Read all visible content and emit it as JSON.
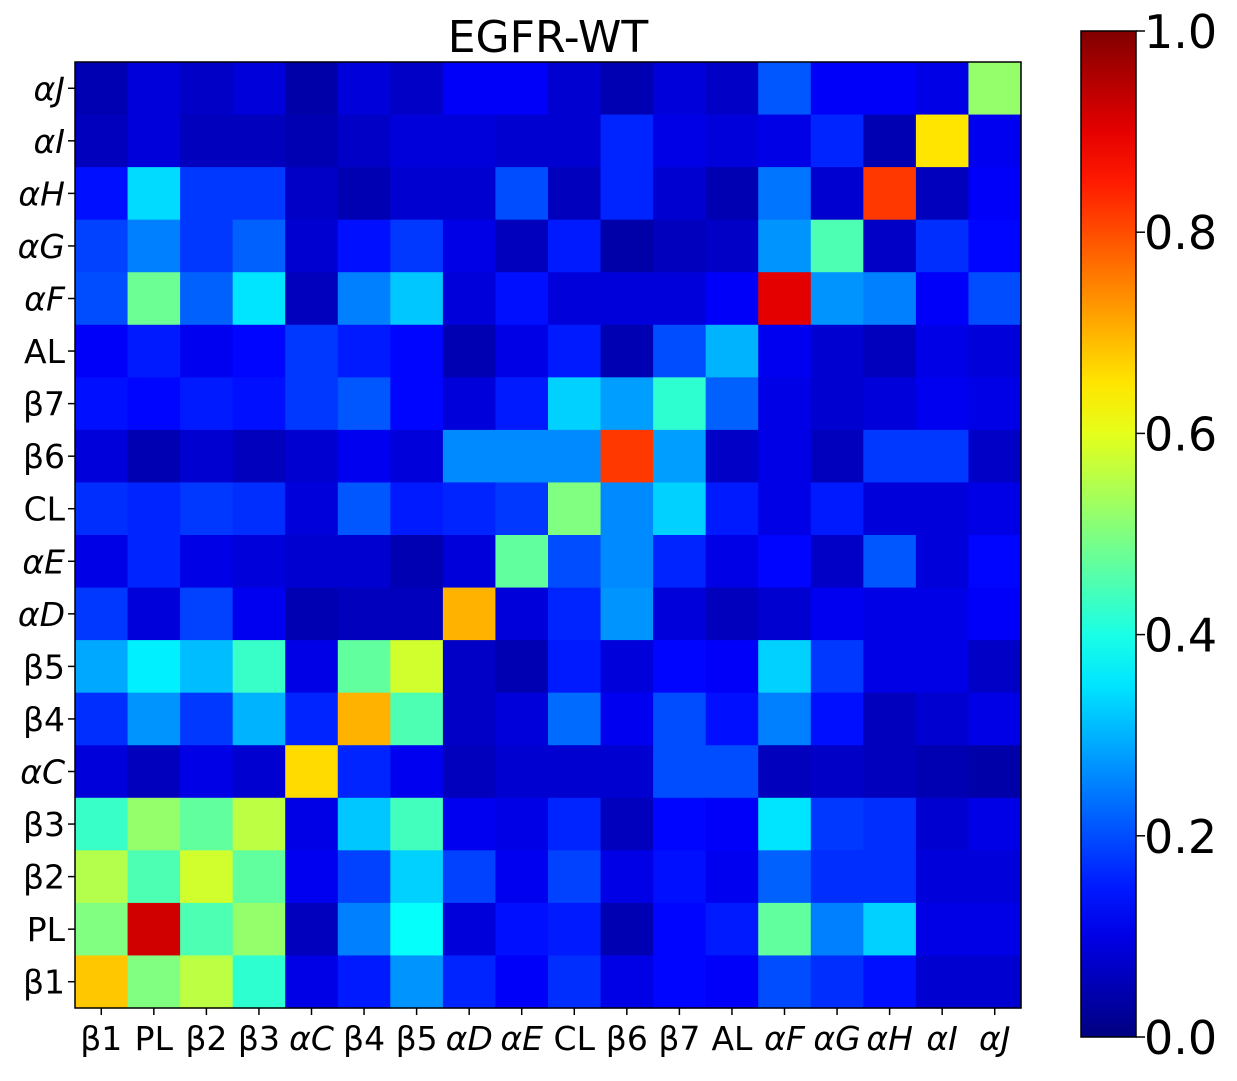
{
  "chart_data": {
    "type": "heatmap",
    "title": "EGFR-WT",
    "x_labels": [
      "β1",
      "PL",
      "β2",
      "β3",
      "αC",
      "β4",
      "β5",
      "αD",
      "αE",
      "CL",
      "β6",
      "β7",
      "AL",
      "αF",
      "αG",
      "αH",
      "αI",
      "αJ"
    ],
    "y_labels": [
      "αJ",
      "αI",
      "αH",
      "αG",
      "αF",
      "AL",
      "β7",
      "β6",
      "CL",
      "αE",
      "αD",
      "β5",
      "β4",
      "αC",
      "β3",
      "β2",
      "PL",
      "β1"
    ],
    "italic_labels": [
      "αJ",
      "αI",
      "αH",
      "αG",
      "αF",
      "αE",
      "αD",
      "αC"
    ],
    "colorbar": {
      "min": 0.0,
      "max": 1.0,
      "colormap": "jet",
      "ticks": [
        0.0,
        0.2,
        0.4,
        0.6,
        0.8,
        1.0
      ],
      "tick_labels": [
        "0.0",
        "0.2",
        "0.4",
        "0.6",
        "0.8",
        "1.0"
      ]
    },
    "matrix": [
      [
        0.05,
        0.09,
        0.07,
        0.09,
        0.04,
        0.09,
        0.07,
        0.12,
        0.12,
        0.08,
        0.05,
        0.09,
        0.07,
        0.21,
        0.12,
        0.12,
        0.1,
        0.52
      ],
      [
        0.06,
        0.09,
        0.06,
        0.06,
        0.05,
        0.07,
        0.09,
        0.09,
        0.08,
        0.08,
        0.16,
        0.1,
        0.09,
        0.1,
        0.16,
        0.05,
        0.65,
        0.11
      ],
      [
        0.14,
        0.34,
        0.18,
        0.18,
        0.07,
        0.05,
        0.08,
        0.08,
        0.2,
        0.06,
        0.16,
        0.08,
        0.05,
        0.24,
        0.08,
        0.82,
        0.06,
        0.12
      ],
      [
        0.19,
        0.25,
        0.18,
        0.22,
        0.08,
        0.14,
        0.18,
        0.1,
        0.06,
        0.15,
        0.04,
        0.06,
        0.07,
        0.27,
        0.45,
        0.07,
        0.17,
        0.13
      ],
      [
        0.2,
        0.48,
        0.22,
        0.35,
        0.06,
        0.25,
        0.32,
        0.09,
        0.14,
        0.09,
        0.09,
        0.09,
        0.12,
        0.9,
        0.27,
        0.25,
        0.12,
        0.2
      ],
      [
        0.12,
        0.15,
        0.11,
        0.13,
        0.18,
        0.15,
        0.13,
        0.05,
        0.1,
        0.15,
        0.05,
        0.2,
        0.3,
        0.11,
        0.08,
        0.06,
        0.1,
        0.09
      ],
      [
        0.14,
        0.13,
        0.15,
        0.14,
        0.18,
        0.21,
        0.13,
        0.09,
        0.15,
        0.33,
        0.28,
        0.42,
        0.22,
        0.1,
        0.08,
        0.09,
        0.11,
        0.1
      ],
      [
        0.09,
        0.05,
        0.08,
        0.06,
        0.08,
        0.11,
        0.09,
        0.26,
        0.26,
        0.26,
        0.82,
        0.28,
        0.07,
        0.1,
        0.06,
        0.18,
        0.18,
        0.07
      ],
      [
        0.17,
        0.16,
        0.18,
        0.17,
        0.09,
        0.21,
        0.15,
        0.16,
        0.18,
        0.5,
        0.26,
        0.33,
        0.15,
        0.1,
        0.15,
        0.09,
        0.09,
        0.1
      ],
      [
        0.1,
        0.16,
        0.1,
        0.09,
        0.08,
        0.08,
        0.05,
        0.09,
        0.47,
        0.2,
        0.26,
        0.16,
        0.1,
        0.13,
        0.07,
        0.21,
        0.09,
        0.13
      ],
      [
        0.18,
        0.09,
        0.19,
        0.11,
        0.05,
        0.06,
        0.06,
        0.7,
        0.09,
        0.16,
        0.27,
        0.09,
        0.06,
        0.08,
        0.11,
        0.1,
        0.1,
        0.12
      ],
      [
        0.29,
        0.36,
        0.31,
        0.43,
        0.1,
        0.47,
        0.58,
        0.07,
        0.05,
        0.15,
        0.09,
        0.13,
        0.12,
        0.33,
        0.18,
        0.1,
        0.1,
        0.07
      ],
      [
        0.17,
        0.27,
        0.18,
        0.3,
        0.16,
        0.7,
        0.45,
        0.07,
        0.09,
        0.23,
        0.11,
        0.2,
        0.14,
        0.25,
        0.14,
        0.06,
        0.08,
        0.1
      ],
      [
        0.09,
        0.06,
        0.1,
        0.08,
        0.66,
        0.16,
        0.11,
        0.06,
        0.08,
        0.08,
        0.08,
        0.2,
        0.2,
        0.06,
        0.07,
        0.06,
        0.05,
        0.04
      ],
      [
        0.43,
        0.52,
        0.47,
        0.56,
        0.1,
        0.32,
        0.44,
        0.11,
        0.1,
        0.16,
        0.06,
        0.13,
        0.12,
        0.35,
        0.18,
        0.17,
        0.08,
        0.1
      ],
      [
        0.55,
        0.45,
        0.58,
        0.47,
        0.11,
        0.19,
        0.33,
        0.19,
        0.11,
        0.19,
        0.1,
        0.14,
        0.11,
        0.22,
        0.17,
        0.17,
        0.09,
        0.09
      ],
      [
        0.5,
        0.92,
        0.45,
        0.52,
        0.06,
        0.25,
        0.38,
        0.09,
        0.14,
        0.15,
        0.05,
        0.13,
        0.15,
        0.47,
        0.25,
        0.33,
        0.1,
        0.1
      ],
      [
        0.68,
        0.5,
        0.56,
        0.42,
        0.1,
        0.15,
        0.27,
        0.16,
        0.12,
        0.17,
        0.1,
        0.13,
        0.12,
        0.2,
        0.17,
        0.14,
        0.08,
        0.08
      ]
    ]
  }
}
